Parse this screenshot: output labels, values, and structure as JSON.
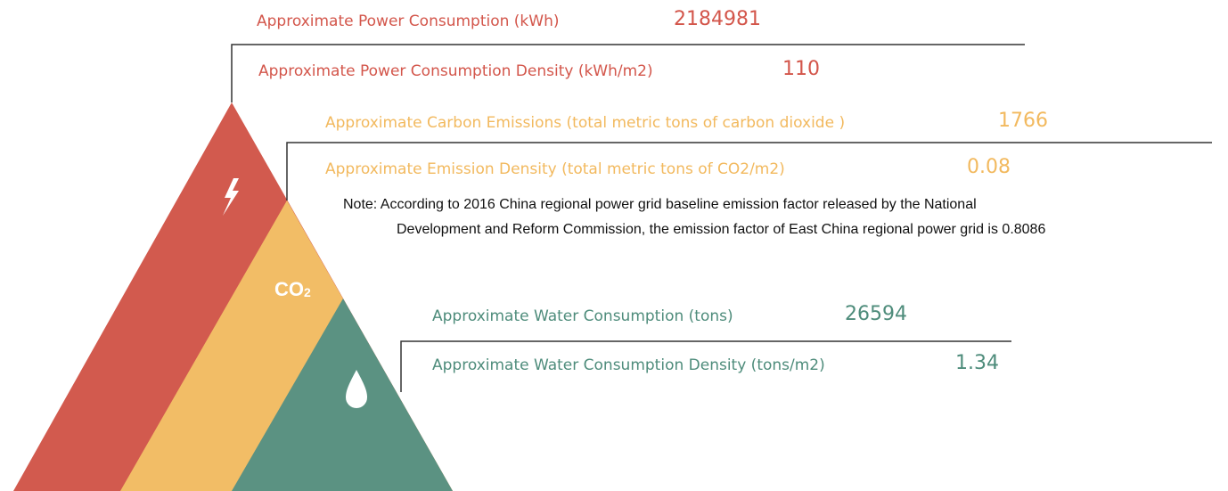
{
  "icon_label": "CO",
  "icon_label_sub": "2",
  "sections": [
    {
      "items": [
        {
          "label": "Approximate Power Consumption (kWh)",
          "value": "2184981"
        },
        {
          "label": "Approximate Power Consumption Density (kWh/m2)",
          "value": "110"
        }
      ]
    },
    {
      "items": [
        {
          "label": "Approximate Carbon Emissions (total metric tons of carbon dioxide )",
          "value": "1766"
        },
        {
          "label": "Approximate Emission Density (total metric tons of CO2/m2)",
          "value": "0.08"
        }
      ],
      "note": [
        "Note: According to 2016 China regional power grid baseline emission factor released by the National",
        "Development  and Reform Commission, the emission factor of East China regional power grid is 0.8086"
      ]
    },
    {
      "items": [
        {
          "label": "Approximate Water Consumption (tons)",
          "value": "26594"
        },
        {
          "label": "Approximate Water Consumption Density (tons/m2)",
          "value": "1.34"
        }
      ]
    }
  ]
}
